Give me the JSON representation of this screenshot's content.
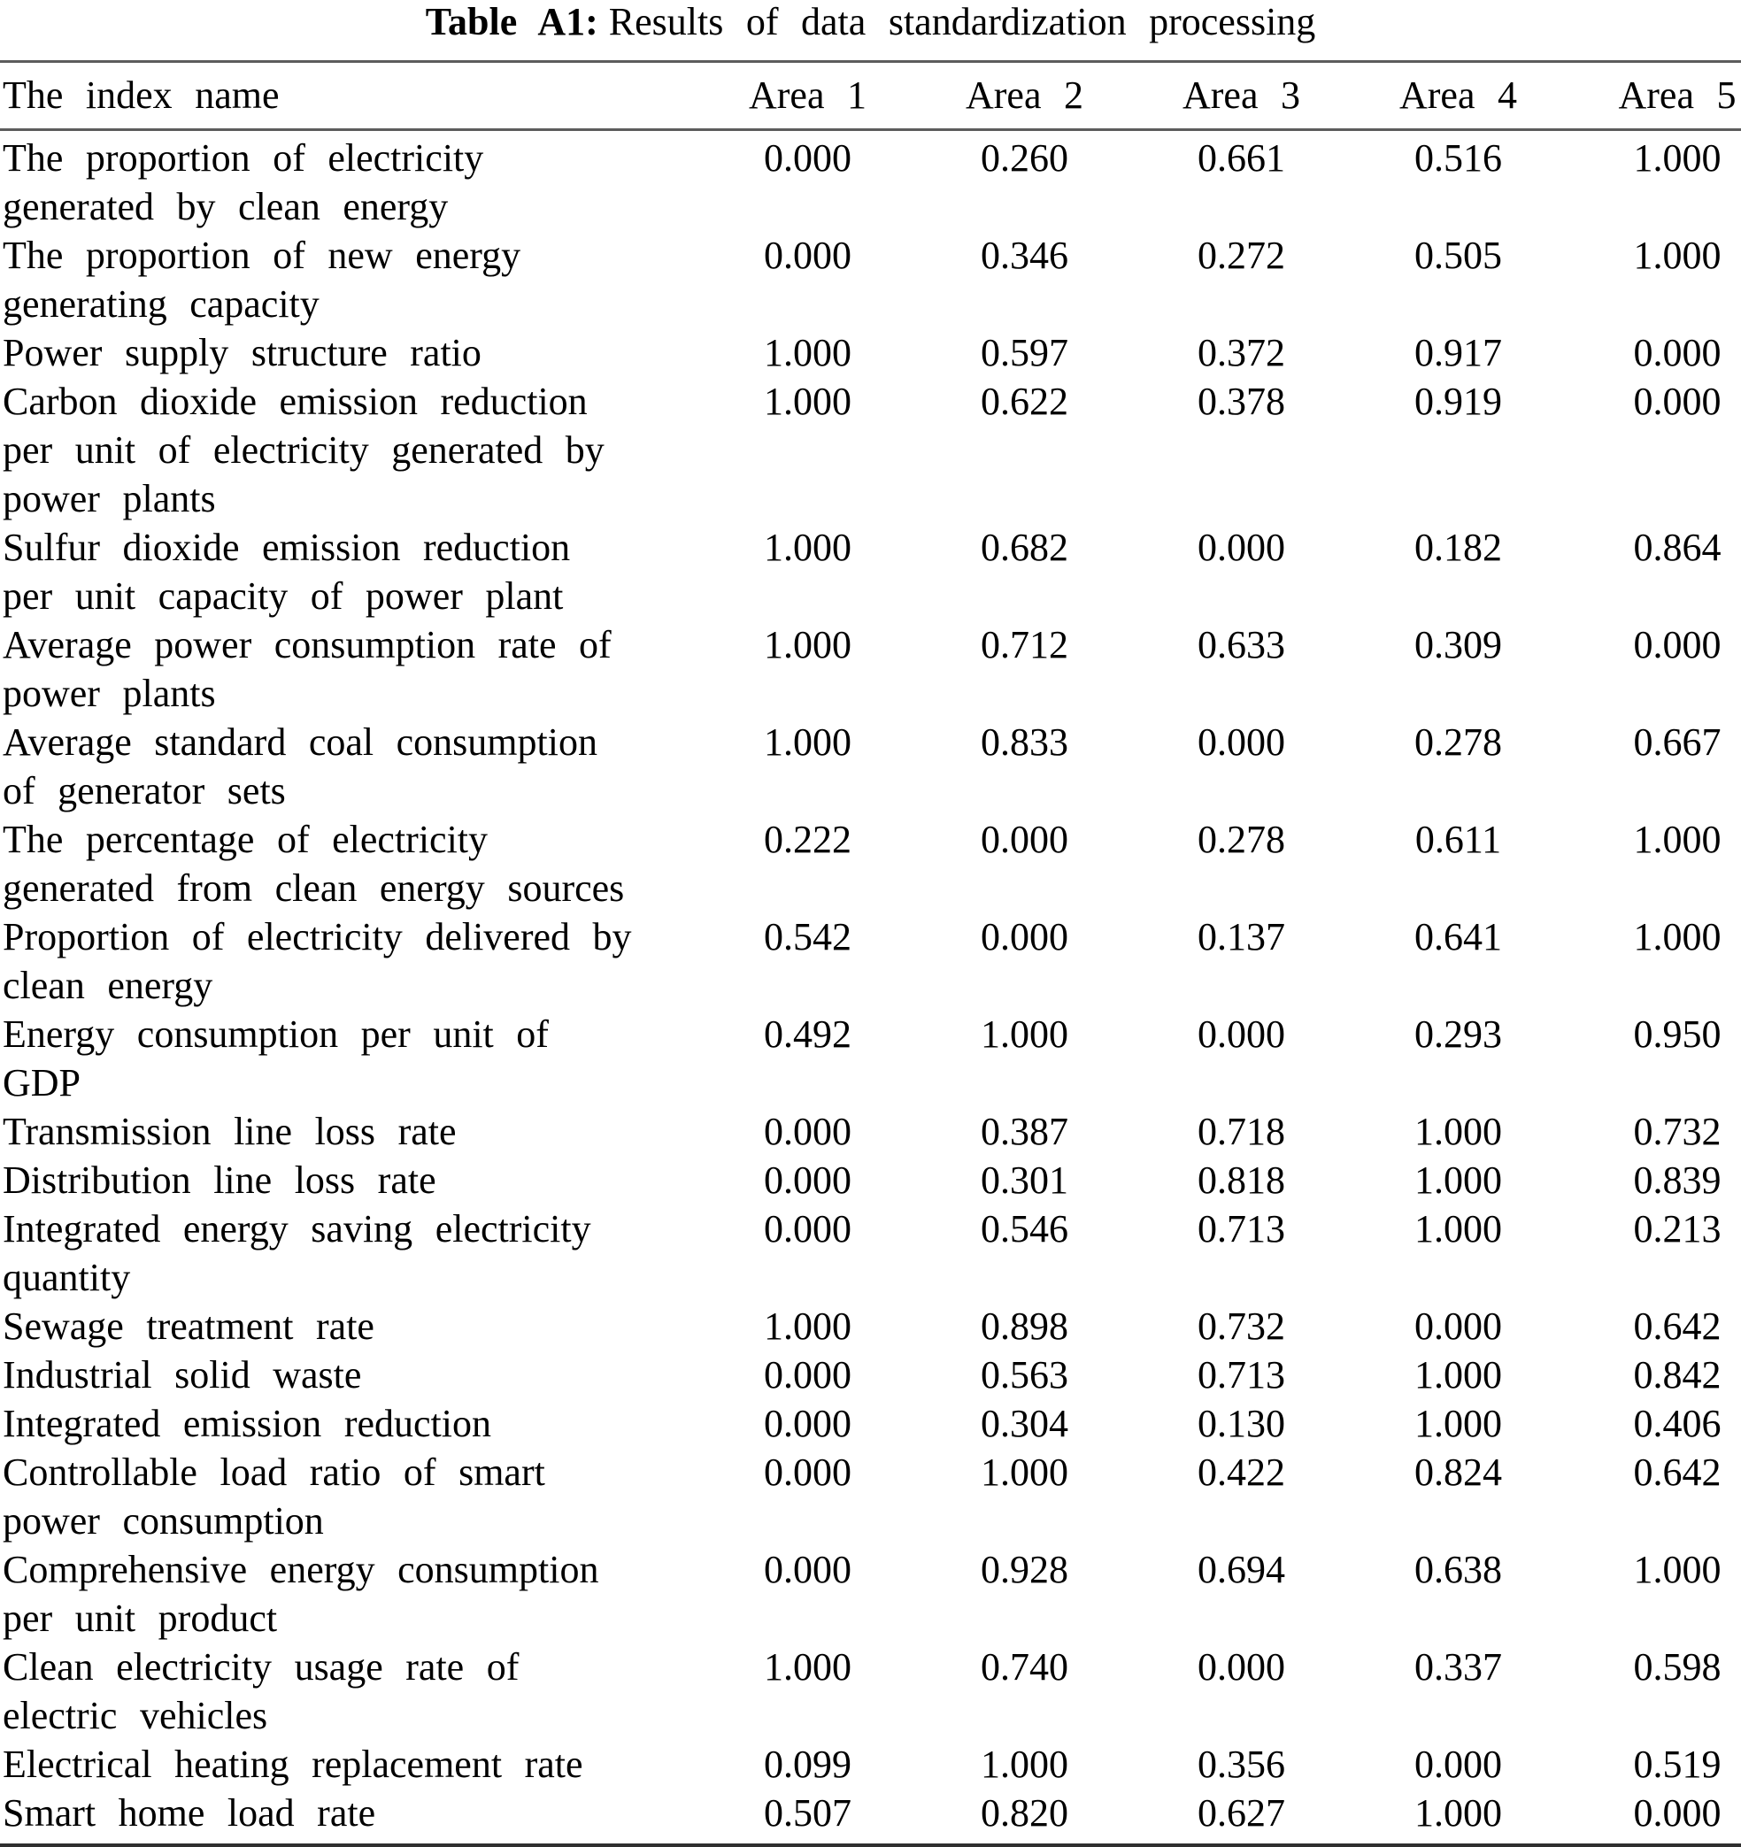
{
  "title": {
    "label": "Table A1:",
    "text": "Results of data standardization processing"
  },
  "colors": {
    "text": "#000000",
    "rule_thin": "#5c5c5c",
    "rule_thick": "#2f2f2f",
    "background": "#ffffff"
  },
  "table": {
    "columns": [
      "The index name",
      "Area 1",
      "Area 2",
      "Area 3",
      "Area 4",
      "Area 5"
    ],
    "rows": [
      {
        "name": "The proportion of electricity\ngenerated by clean energy",
        "values": [
          "0.000",
          "0.260",
          "0.661",
          "0.516",
          "1.000"
        ]
      },
      {
        "name": "The proportion of new energy\ngenerating capacity",
        "values": [
          "0.000",
          "0.346",
          "0.272",
          "0.505",
          "1.000"
        ]
      },
      {
        "name": "Power supply structure ratio",
        "values": [
          "1.000",
          "0.597",
          "0.372",
          "0.917",
          "0.000"
        ]
      },
      {
        "name": "Carbon dioxide emission reduction\nper unit of electricity generated by\npower plants",
        "values": [
          "1.000",
          "0.622",
          "0.378",
          "0.919",
          "0.000"
        ]
      },
      {
        "name": "Sulfur dioxide emission reduction\nper unit capacity of power plant",
        "values": [
          "1.000",
          "0.682",
          "0.000",
          "0.182",
          "0.864"
        ]
      },
      {
        "name": "Average power consumption rate of\npower plants",
        "values": [
          "1.000",
          "0.712",
          "0.633",
          "0.309",
          "0.000"
        ]
      },
      {
        "name": "Average standard coal consumption\nof generator sets",
        "values": [
          "1.000",
          "0.833",
          "0.000",
          "0.278",
          "0.667"
        ]
      },
      {
        "name": "The percentage of electricity\ngenerated from clean energy sources",
        "values": [
          "0.222",
          "0.000",
          "0.278",
          "0.611",
          "1.000"
        ]
      },
      {
        "name": "Proportion of electricity delivered by\nclean energy",
        "values": [
          "0.542",
          "0.000",
          "0.137",
          "0.641",
          "1.000"
        ]
      },
      {
        "name": "Energy consumption per unit of\nGDP",
        "values": [
          "0.492",
          "1.000",
          "0.000",
          "0.293",
          "0.950"
        ]
      },
      {
        "name": "Transmission line loss rate",
        "values": [
          "0.000",
          "0.387",
          "0.718",
          "1.000",
          "0.732"
        ]
      },
      {
        "name": "Distribution line loss rate",
        "values": [
          "0.000",
          "0.301",
          "0.818",
          "1.000",
          "0.839"
        ]
      },
      {
        "name": "Integrated energy saving electricity\nquantity",
        "values": [
          "0.000",
          "0.546",
          "0.713",
          "1.000",
          "0.213"
        ]
      },
      {
        "name": "Sewage treatment rate",
        "values": [
          "1.000",
          "0.898",
          "0.732",
          "0.000",
          "0.642"
        ]
      },
      {
        "name": "Industrial solid waste",
        "values": [
          "0.000",
          "0.563",
          "0.713",
          "1.000",
          "0.842"
        ]
      },
      {
        "name": "Integrated emission reduction",
        "values": [
          "0.000",
          "0.304",
          "0.130",
          "1.000",
          "0.406"
        ]
      },
      {
        "name": "Controllable load ratio of smart\npower consumption",
        "values": [
          "0.000",
          "1.000",
          "0.422",
          "0.824",
          "0.642"
        ]
      },
      {
        "name": "Comprehensive energy consumption\nper unit product",
        "values": [
          "0.000",
          "0.928",
          "0.694",
          "0.638",
          "1.000"
        ]
      },
      {
        "name": "Clean electricity usage rate of\nelectric vehicles",
        "values": [
          "1.000",
          "0.740",
          "0.000",
          "0.337",
          "0.598"
        ]
      },
      {
        "name": "Electrical heating replacement rate",
        "values": [
          "0.099",
          "1.000",
          "0.356",
          "0.000",
          "0.519"
        ]
      },
      {
        "name": "Smart home load rate",
        "values": [
          "0.507",
          "0.820",
          "0.627",
          "1.000",
          "0.000"
        ]
      }
    ]
  }
}
